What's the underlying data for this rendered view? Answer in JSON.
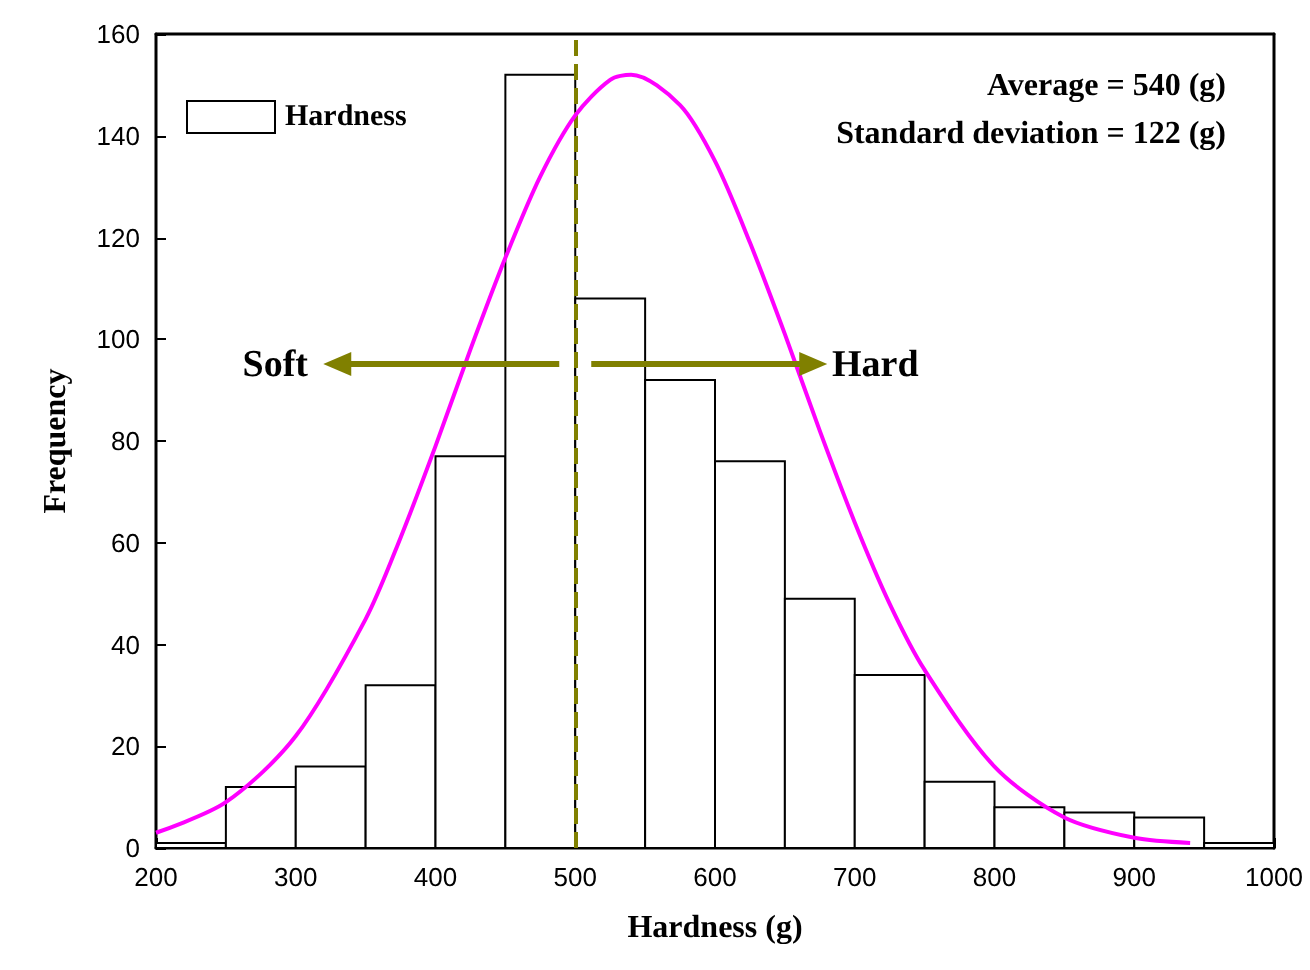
{
  "chart_data": {
    "type": "histogram",
    "xlabel": "Hardness (g)",
    "ylabel": "Frequency",
    "series": [
      {
        "name": "Hardness",
        "color": "#ffffff",
        "bins": [
          200,
          250,
          300,
          350,
          400,
          450,
          500,
          550,
          600,
          650,
          700,
          750,
          800,
          850,
          900,
          950,
          1000
        ],
        "values": [
          1,
          12,
          16,
          32,
          77,
          152,
          108,
          92,
          76,
          49,
          34,
          13,
          8,
          7,
          6,
          1
        ]
      },
      {
        "type": "line",
        "color": "#ff00ff",
        "x": [
          200,
          250,
          300,
          350,
          375,
          400,
          425,
          450,
          475,
          500,
          525,
          540,
          575,
          600,
          625,
          650,
          675,
          700,
          725,
          750,
          800,
          850,
          900,
          940
        ],
        "values": [
          3,
          9,
          22,
          45,
          61,
          79,
          98,
          116,
          132,
          144,
          151,
          152,
          146,
          135,
          119,
          101,
          82,
          64,
          48,
          35,
          16,
          6,
          2,
          1
        ]
      }
    ],
    "xlim": [
      200,
      1000
    ],
    "xticks": [
      200,
      300,
      400,
      500,
      600,
      700,
      800,
      900,
      1000
    ],
    "ylim": [
      0,
      160
    ],
    "yticks": [
      0,
      20,
      40,
      60,
      80,
      100,
      120,
      140,
      160
    ],
    "ref_lines": [
      {
        "axis": "x",
        "value": 500,
        "color": "#808000",
        "line_style": "dashed"
      }
    ],
    "annotations": [
      "Soft",
      "Hard",
      "Average = 540 (g)",
      "Standard deviation = 122 (g)"
    ],
    "legend": "top left",
    "grid": false,
    "marker": "none",
    "line_style": "solid"
  }
}
